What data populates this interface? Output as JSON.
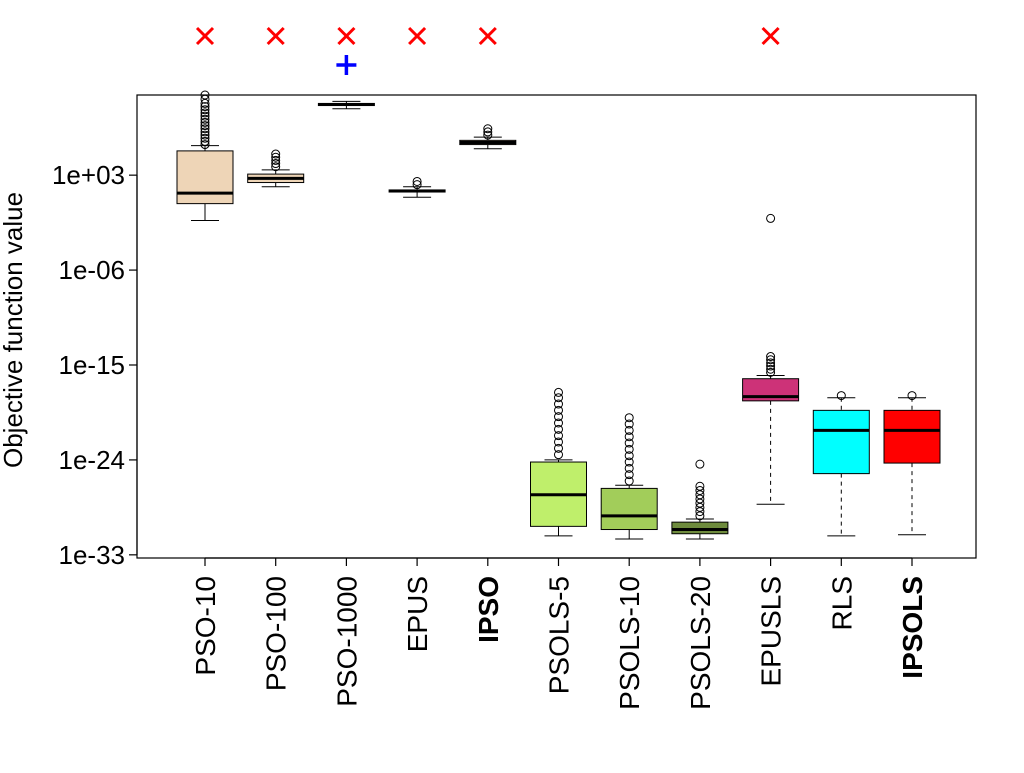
{
  "chart_data": {
    "type": "box",
    "ylabel": "Objective function value",
    "xlabel": "",
    "yscale": "log10",
    "ylim_log10": [
      -33.3,
      10.6
    ],
    "y_ticks": [
      {
        "exp": 3,
        "label": "1e+03"
      },
      {
        "exp": -6,
        "label": "1e-06"
      },
      {
        "exp": -15,
        "label": "1e-15"
      },
      {
        "exp": -24,
        "label": "1e-24"
      },
      {
        "exp": -33,
        "label": "1e-33"
      }
    ],
    "categories": [
      "PSO-10",
      "PSO-100",
      "PSO-1000",
      "EPUS",
      "IPSO",
      "PSOLS-5",
      "PSOLS-10",
      "PSOLS-20",
      "EPUSLS",
      "RLS",
      "IPSOLS"
    ],
    "bold_categories": [
      "IPSO",
      "IPSOLS"
    ],
    "boxes": [
      {
        "name": "PSO-10",
        "color": "#eed5b7",
        "whisker_low": -1.3,
        "q1": 0.3,
        "median": 1.3,
        "q3": 5.3,
        "whisker_high": 5.8,
        "whisker_style": "solid",
        "outliers": [
          5.9,
          6.2,
          6.5,
          6.8,
          7.1,
          7.4,
          7.7,
          8.0,
          8.3,
          8.6,
          8.9,
          9.2,
          9.5,
          9.8,
          10.2,
          10.6
        ]
      },
      {
        "name": "PSO-100",
        "color": "#eed5b7",
        "whisker_low": 1.9,
        "q1": 2.3,
        "median": 2.7,
        "q3": 3.1,
        "whisker_high": 3.5,
        "whisker_style": "solid",
        "outliers": [
          3.8,
          4.1,
          4.4,
          4.7,
          5.0
        ]
      },
      {
        "name": "PSO-1000",
        "color": "#eed5b7",
        "whisker_low": 9.3,
        "q1": 9.6,
        "median": 9.7,
        "q3": 9.8,
        "whisker_high": 10.0,
        "whisker_style": "solid",
        "outliers": []
      },
      {
        "name": "EPUS",
        "color": "#eed5b7",
        "whisker_low": 0.9,
        "q1": 1.4,
        "median": 1.5,
        "q3": 1.6,
        "whisker_high": 1.9,
        "whisker_style": "solid",
        "outliers": [
          2.1,
          2.4
        ]
      },
      {
        "name": "IPSO",
        "color": "#eed5b7",
        "whisker_low": 5.5,
        "q1": 5.9,
        "median": 6.1,
        "q3": 6.3,
        "whisker_high": 6.6,
        "whisker_style": "solid",
        "outliers": [
          6.8,
          7.1,
          7.4
        ]
      },
      {
        "name": "PSOLS-5",
        "color": "#bfef6b",
        "whisker_low": -31.2,
        "q1": -30.3,
        "median": -27.3,
        "q3": -24.2,
        "whisker_high": -24.0,
        "whisker_style": "solid",
        "outliers": [
          -23.5,
          -22.9,
          -22.3,
          -21.7,
          -21.1,
          -20.5,
          -19.9,
          -19.3,
          -18.7,
          -18.1,
          -17.6
        ]
      },
      {
        "name": "PSOLS-10",
        "color": "#a2cd5a",
        "whisker_low": -31.5,
        "q1": -30.6,
        "median": -29.3,
        "q3": -26.7,
        "whisker_high": -26.4,
        "whisker_style": "solid",
        "outliers": [
          -26.0,
          -25.4,
          -24.8,
          -24.2,
          -23.6,
          -23.0,
          -22.4,
          -21.8,
          -21.2,
          -20.6,
          -20.0
        ]
      },
      {
        "name": "PSOLS-20",
        "color": "#6e8b3d",
        "whisker_low": -31.5,
        "q1": -31.0,
        "median": -30.6,
        "q3": -29.9,
        "whisker_high": -29.6,
        "whisker_style": "solid",
        "outliers": [
          -29.3,
          -28.9,
          -28.5,
          -28.1,
          -27.7,
          -27.3,
          -26.9,
          -26.5,
          -24.4
        ]
      },
      {
        "name": "EPUSLS",
        "color": "#cd3278",
        "whisker_low": -28.2,
        "q1": -18.4,
        "median": -18.0,
        "q3": -16.3,
        "whisker_high": -16.0,
        "whisker_style": "dashed",
        "outliers": [
          -15.7,
          -15.4,
          -15.1,
          -14.8,
          -14.5,
          -14.2,
          -1.1
        ]
      },
      {
        "name": "RLS",
        "color": "#00ffff",
        "whisker_low": -31.2,
        "q1": -25.3,
        "median": -21.2,
        "q3": -19.3,
        "whisker_high": -18.1,
        "whisker_style": "dashed",
        "outliers": [
          -17.9
        ]
      },
      {
        "name": "IPSOLS",
        "color": "#ff0000",
        "whisker_low": -31.1,
        "q1": -24.3,
        "median": -21.2,
        "q3": -19.3,
        "whisker_high": -18.1,
        "whisker_style": "dashed",
        "outliers": [
          -17.9
        ]
      }
    ],
    "top_markers": [
      {
        "category": "PSO-10",
        "symbol": "×",
        "color": "#ff0000",
        "row": 1
      },
      {
        "category": "PSO-100",
        "symbol": "×",
        "color": "#ff0000",
        "row": 1
      },
      {
        "category": "PSO-1000",
        "symbol": "×",
        "color": "#ff0000",
        "row": 1
      },
      {
        "category": "PSO-1000",
        "symbol": "+",
        "color": "#0000ff",
        "row": 2
      },
      {
        "category": "EPUS",
        "symbol": "×",
        "color": "#ff0000",
        "row": 1
      },
      {
        "category": "IPSO",
        "symbol": "×",
        "color": "#ff0000",
        "row": 1
      },
      {
        "category": "EPUSLS",
        "symbol": "×",
        "color": "#ff0000",
        "row": 1
      }
    ]
  }
}
